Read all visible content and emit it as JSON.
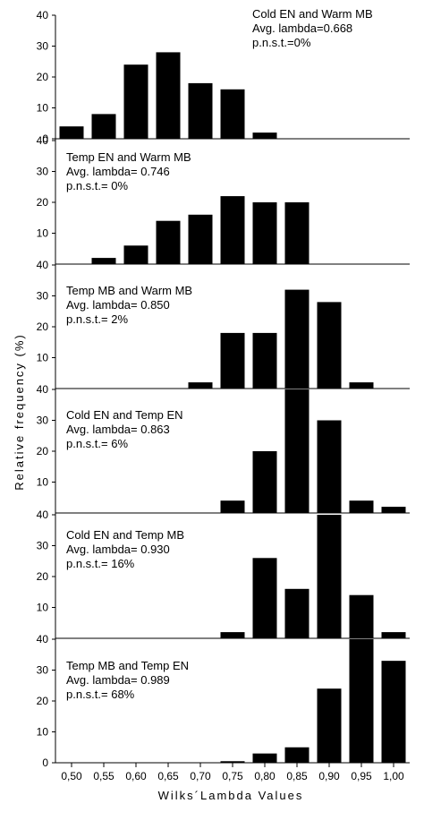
{
  "chart_data": {
    "type": "bar",
    "xlabel": "Wilks´Lambda Values",
    "ylabel": "Relative frequency (%)",
    "x_ticks": [
      "0,50",
      "0,55",
      "0,60",
      "0,65",
      "0,70",
      "0,75",
      "0,80",
      "0,85",
      "0,90",
      "0,95",
      "1,00"
    ],
    "y_ticks": [
      "0",
      "10",
      "20",
      "30",
      "40"
    ],
    "ylim": [
      0,
      40
    ],
    "bar_color": "#000000",
    "panels": [
      {
        "lines": [
          "Cold EN and Warm MB",
          "Avg. lambda=0.668",
          "p.n.s.t.=0%"
        ],
        "x": [
          0.5,
          0.55,
          0.6,
          0.65,
          0.7,
          0.75,
          0.8
        ],
        "values": [
          4,
          8,
          24,
          28,
          18,
          16,
          2
        ]
      },
      {
        "lines": [
          "Temp EN and Warm MB",
          "Avg. lambda= 0.746",
          "p.n.s.t.= 0%"
        ],
        "x": [
          0.55,
          0.6,
          0.65,
          0.7,
          0.75,
          0.8,
          0.85
        ],
        "values": [
          2,
          6,
          14,
          16,
          22,
          20,
          20
        ]
      },
      {
        "lines": [
          "Temp MB and Warm MB",
          "Avg. lambda= 0.850",
          "p.n.s.t.= 2%"
        ],
        "x": [
          0.7,
          0.75,
          0.8,
          0.85,
          0.9,
          0.95
        ],
        "values": [
          2,
          18,
          18,
          32,
          28,
          2
        ]
      },
      {
        "lines": [
          "Cold EN and Temp EN",
          "Avg. lambda= 0.863",
          "p.n.s.t.= 6%"
        ],
        "x": [
          0.75,
          0.8,
          0.85,
          0.9,
          0.95,
          1.0
        ],
        "values": [
          4,
          20,
          40,
          30,
          4,
          2
        ]
      },
      {
        "lines": [
          "Cold EN and Temp MB",
          "Avg. lambda= 0.930",
          "p.n.s.t.= 16%"
        ],
        "x": [
          0.75,
          0.8,
          0.85,
          0.9,
          0.95,
          1.0
        ],
        "values": [
          2,
          26,
          16,
          40,
          14,
          2
        ]
      },
      {
        "lines": [
          "Temp MB and Temp EN",
          "Avg. lambda= 0.989",
          "p.n.s.t.= 68%"
        ],
        "x": [
          0.75,
          0.8,
          0.85,
          0.9,
          0.95,
          1.0
        ],
        "values": [
          0.5,
          3,
          5,
          24,
          40,
          33
        ]
      }
    ]
  }
}
